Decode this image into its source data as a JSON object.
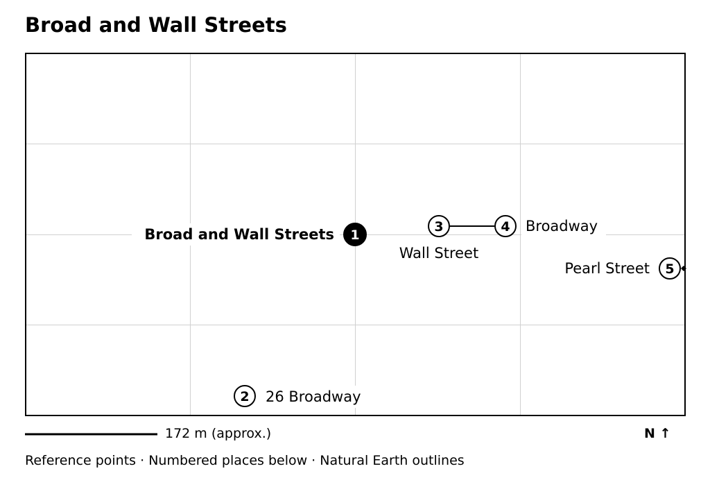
{
  "title": "Broad and Wall Streets",
  "scale_bar": {
    "label": "172 m (approx.)"
  },
  "north_label": "N ↑",
  "footer": "Reference points · Numbered places below · Natural Earth outlines",
  "markers": [
    {
      "number": "1",
      "label": "Broad and Wall Streets",
      "highlighted": true
    },
    {
      "number": "2",
      "label": "26 Broadway",
      "highlighted": false
    },
    {
      "number": "3",
      "label": "Wall Street",
      "highlighted": false
    },
    {
      "number": "4",
      "label": "Broadway",
      "highlighted": false
    },
    {
      "number": "5",
      "label": "Pearl Street",
      "highlighted": false
    }
  ],
  "colors": {
    "grid": "#d0d0d0",
    "frame": "#000000",
    "marker_fill_highlight": "#000000",
    "marker_fill": "#ffffff"
  }
}
